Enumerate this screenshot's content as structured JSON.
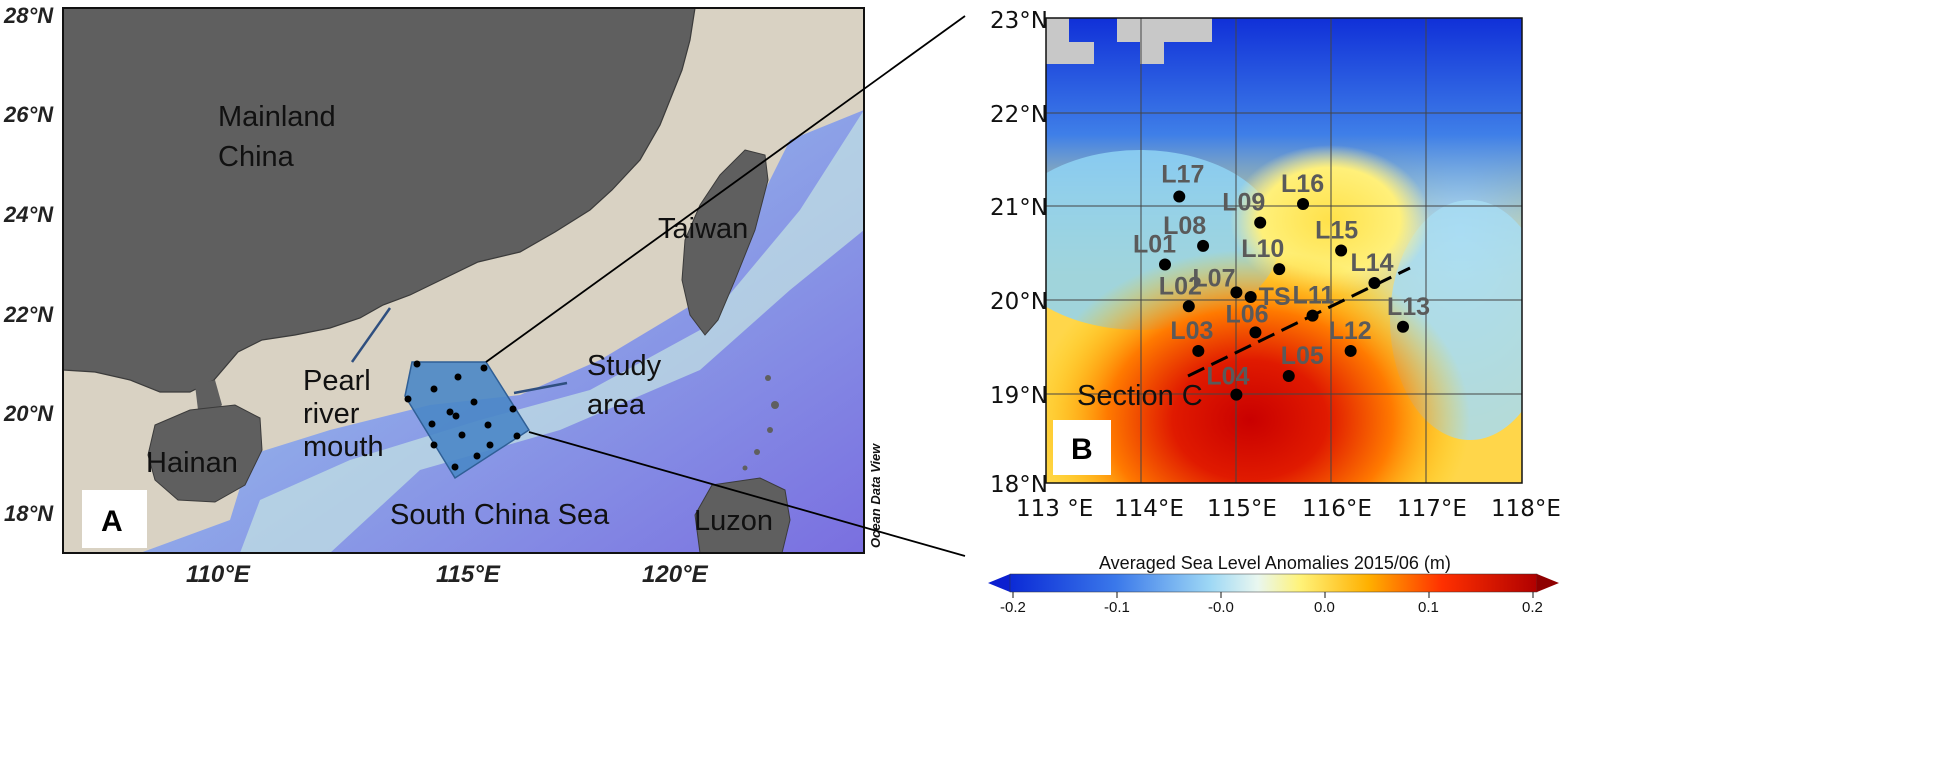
{
  "panel_a": {
    "letter": "A",
    "lat_labels": [
      "28°N",
      "26°N",
      "24°N",
      "22°N",
      "20°N",
      "18°N"
    ],
    "lon_labels": [
      "110°E",
      "115°E",
      "120°E"
    ],
    "place_names": {
      "mainland_line1": "Mainland",
      "mainland_line2": "China",
      "taiwan": "Taiwan",
      "pearl_line1": "Pearl",
      "pearl_line2": "river",
      "pearl_line3": "mouth",
      "study_line1": "Study",
      "study_line2": "area",
      "hainan": "Hainan",
      "south_china_sea": "South China Sea",
      "luzon": "Luzon"
    },
    "credit": "Ocean Data View",
    "colors": {
      "land": "#5f5f5f",
      "shelf": "#d9d2c3",
      "deep": "#7c87e8",
      "study_area": "#4a87c6"
    }
  },
  "panel_b": {
    "letter": "B",
    "lat_labels": [
      "23°N",
      "22°N",
      "21°N",
      "20°N",
      "19°N",
      "18°N"
    ],
    "lon_labels": [
      "113 °E",
      "114°E",
      "115°E",
      "116°E",
      "117°E",
      "118°E"
    ],
    "stations": [
      {
        "name": "L17",
        "lon": 114.4,
        "lat": 21.08
      },
      {
        "name": "L16",
        "lon": 115.7,
        "lat": 21.0
      },
      {
        "name": "L09",
        "lon": 115.25,
        "lat": 20.8
      },
      {
        "name": "L08",
        "lon": 114.65,
        "lat": 20.55
      },
      {
        "name": "L01",
        "lon": 114.25,
        "lat": 20.35
      },
      {
        "name": "L15",
        "lon": 116.1,
        "lat": 20.5
      },
      {
        "name": "L10",
        "lon": 115.45,
        "lat": 20.3
      },
      {
        "name": "L14",
        "lon": 116.45,
        "lat": 20.15
      },
      {
        "name": "L07",
        "lon": 115.0,
        "lat": 20.05
      },
      {
        "name": "TS",
        "lon": 115.15,
        "lat": 20.0
      },
      {
        "name": "L02",
        "lon": 114.5,
        "lat": 19.9
      },
      {
        "name": "L11",
        "lon": 115.8,
        "lat": 19.8
      },
      {
        "name": "L13",
        "lon": 116.75,
        "lat": 19.68
      },
      {
        "name": "L06",
        "lon": 115.2,
        "lat": 19.62
      },
      {
        "name": "L12",
        "lon": 116.2,
        "lat": 19.42
      },
      {
        "name": "L03",
        "lon": 114.6,
        "lat": 19.42
      },
      {
        "name": "L05",
        "lon": 115.55,
        "lat": 19.15
      },
      {
        "name": "L04",
        "lon": 115.0,
        "lat": 18.95
      }
    ],
    "section_label": "Section C",
    "colorbar": {
      "title": "Averaged Sea Level Anomalies 2015/06 (m)",
      "ticks": [
        "-0.2",
        "-0.1",
        "-0.0",
        "0.0",
        "0.1",
        "0.2"
      ]
    }
  }
}
